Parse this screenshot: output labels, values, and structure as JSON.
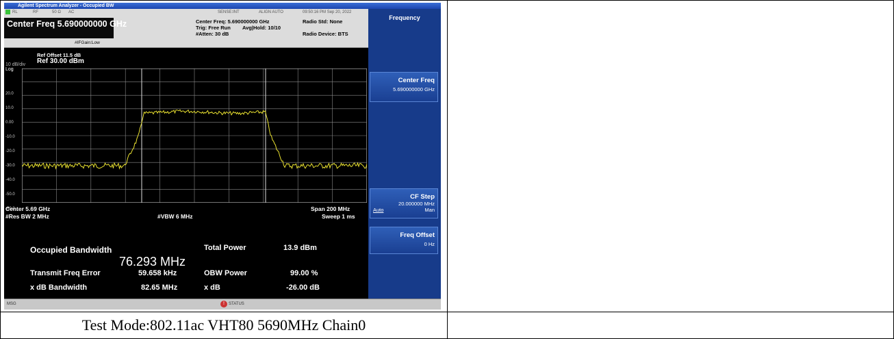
{
  "window": {
    "title": "Agilent Spectrum Analyzer - Occupied BW"
  },
  "header": {
    "rl": "RL",
    "rf": "RF",
    "impedance": "50 Ω",
    "coupling": "AC",
    "sense": "SENSE:INT",
    "align": "ALIGN AUTO",
    "datetime": "09:50:16 PM Sep 20, 2022",
    "center_freq_label": "Center Freq 5.690000000 GHz",
    "center_freq_info": "Center Freq: 5.690000000 GHz",
    "trig": "Trig: Free Run",
    "avg_hold": "Avg|Hold: 10/10",
    "atten": "#Atten: 30 dB",
    "if_gain": "#IFGain:Low",
    "radio_std": "Radio Std: None",
    "radio_device": "Radio Device: BTS"
  },
  "plot": {
    "ref_offset": "Ref Offset 11.5 dB",
    "ref_level": "Ref 30.00 dBm",
    "scale": "10 dB/div",
    "scale_type": "Log",
    "y_ticks": [
      "20.0",
      "10.0",
      "0.00",
      "-10.0",
      "-20.0",
      "-30.0",
      "-40.0",
      "-50.0",
      "-60.0"
    ],
    "center": "Center  5.69 GHz",
    "span": "Span 200 MHz",
    "res_bw": "#Res BW  2 MHz",
    "vbw": "#VBW  6 MHz",
    "sweep": "Sweep  1 ms"
  },
  "measurement": {
    "occupied_bw_label": "Occupied Bandwidth",
    "occupied_bw_value": "76.293 MHz",
    "total_power_label": "Total Power",
    "total_power_value": "13.9 dBm",
    "tx_freq_error_label": "Transmit Freq Error",
    "tx_freq_error_value": "59.658 kHz",
    "obw_power_label": "OBW Power",
    "obw_power_value": "99.00 %",
    "xdb_bw_label": "x dB Bandwidth",
    "xdb_bw_value": "82.65 MHz",
    "xdb_label": "x dB",
    "xdb_value": "-26.00 dB"
  },
  "menu": {
    "title": "Frequency",
    "center_freq": {
      "label": "Center Freq",
      "value": "5.690000000 GHz"
    },
    "cf_step": {
      "label": "CF Step",
      "value": "20.000000 MHz",
      "auto": "Auto",
      "man": "Man"
    },
    "freq_offset": {
      "label": "Freq Offset",
      "value": "0 Hz"
    }
  },
  "statusbar": {
    "msg": "MSG",
    "status": "STATUS"
  },
  "caption": "Test Mode:802.11ac VHT80 5690MHz Chain0",
  "colors": {
    "trace": "#e8e030",
    "grid": "#8a8a8a",
    "menu": "#173b8a"
  }
}
